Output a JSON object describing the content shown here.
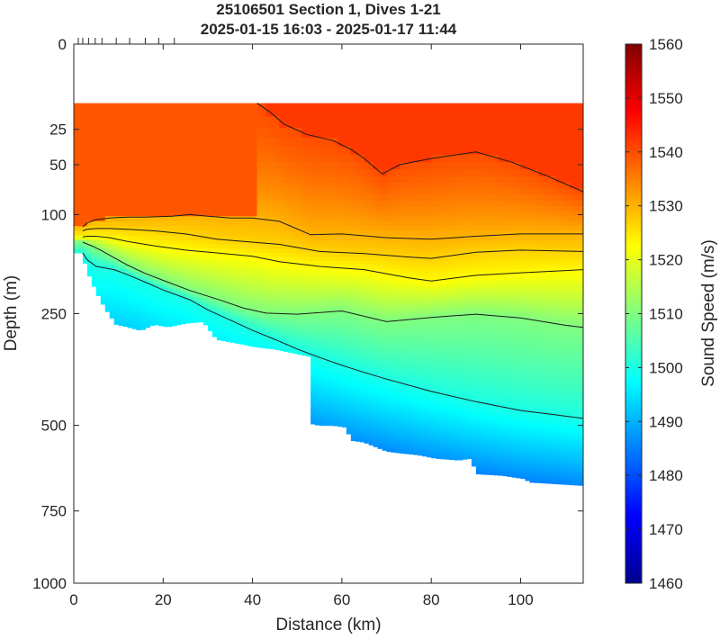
{
  "chart_data": {
    "type": "heatmap",
    "title": "25106501 Section 1, Dives 1-21",
    "subtitle": "2025-01-15 16:03 - 2025-01-17 11:44",
    "xlabel": "Distance (km)",
    "ylabel": "Depth (m)",
    "xlim": [
      0,
      114
    ],
    "ylim": [
      0,
      1000
    ],
    "y_scale": "sqrt",
    "x_ticks": [
      "0",
      "20",
      "40",
      "60",
      "80",
      "100"
    ],
    "x_tick_values": [
      0,
      20,
      40,
      60,
      80,
      100
    ],
    "y_ticks": [
      "0",
      "25",
      "50",
      "100",
      "250",
      "500",
      "750",
      "1000"
    ],
    "y_tick_values": [
      0,
      25,
      50,
      100,
      250,
      500,
      750,
      1000
    ],
    "colorbar": {
      "label": "Sound Speed (m/s)",
      "min": 1460,
      "max": 1560,
      "ticks": [
        "1460",
        "1470",
        "1480",
        "1490",
        "1500",
        "1510",
        "1520",
        "1530",
        "1540",
        "1550",
        "1560"
      ],
      "tick_values": [
        1460,
        1470,
        1480,
        1490,
        1500,
        1510,
        1520,
        1530,
        1540,
        1550,
        1560
      ]
    },
    "dive_marker_distances": [
      1,
      2,
      3.3,
      4.8,
      6.3,
      9.5,
      12.5,
      16,
      19,
      22.5
    ],
    "data_top_depth": 12,
    "bottom_profile": {
      "distance": [
        2,
        3.5,
        5,
        7,
        9.5,
        12,
        15,
        18,
        21,
        25,
        29,
        32,
        35,
        38,
        40.5,
        45,
        50,
        52.5,
        53,
        55,
        58,
        61,
        62,
        65,
        69,
        70,
        73,
        77,
        81,
        86,
        89,
        90,
        96,
        101,
        102,
        108,
        114
      ],
      "depth": [
        155,
        185,
        210,
        240,
        270,
        275,
        282,
        270,
        275,
        268,
        265,
        300,
        305,
        310,
        315,
        320,
        330,
        335,
        495,
        500,
        500,
        505,
        540,
        545,
        565,
        570,
        575,
        580,
        590,
        595,
        590,
        635,
        640,
        650,
        660,
        665,
        670
      ]
    },
    "contours": [
      {
        "distance": [
          41,
          44,
          47,
          52,
          58,
          62,
          65,
          69,
          73,
          80,
          90,
          98,
          106,
          114
        ],
        "depth": [
          12,
          16,
          22,
          28,
          32,
          38,
          45,
          58,
          50,
          45,
          40,
          48,
          60,
          75
        ]
      },
      {
        "distance": [
          2,
          3,
          5,
          8,
          12,
          16,
          22,
          26,
          30,
          35,
          40,
          46,
          53,
          60,
          70,
          80,
          90,
          100,
          114
        ],
        "depth": [
          115,
          110,
          106,
          104,
          103,
          103,
          102,
          100,
          102,
          104,
          104,
          108,
          125,
          124,
          129,
          131,
          127,
          124,
          124
        ]
      },
      {
        "distance": [
          2,
          3,
          5,
          8,
          12,
          18,
          25,
          32,
          38,
          46,
          55,
          65,
          75,
          80,
          90,
          100,
          114
        ],
        "depth": [
          120,
          118,
          117,
          117,
          118,
          120,
          124,
          131,
          134,
          138,
          148,
          151,
          156,
          158,
          149,
          146,
          148
        ]
      },
      {
        "distance": [
          2,
          3,
          5,
          8,
          12,
          18,
          25,
          32,
          40,
          46,
          55,
          65,
          75,
          80,
          90,
          100,
          114
        ],
        "depth": [
          128,
          127,
          127,
          129,
          134,
          140,
          146,
          150,
          155,
          163,
          170,
          175,
          188,
          193,
          184,
          180,
          175
        ]
      },
      {
        "distance": [
          2,
          4,
          6,
          9,
          12,
          16,
          20,
          26,
          33,
          38,
          43,
          50,
          60,
          70,
          80,
          90,
          100,
          110,
          114
        ],
        "depth": [
          135,
          140,
          146,
          157,
          168,
          181,
          192,
          209,
          226,
          240,
          249,
          251,
          245,
          265,
          257,
          251,
          258,
          272,
          276
        ]
      },
      {
        "distance": [
          2,
          3,
          5,
          9,
          12,
          16,
          20,
          26,
          30,
          35,
          40,
          45,
          50,
          55,
          60,
          65,
          70,
          80,
          90,
          100,
          108,
          114
        ],
        "depth": [
          150,
          160,
          170,
          175,
          183,
          195,
          208,
          225,
          243,
          262,
          282,
          300,
          320,
          338,
          355,
          371,
          386,
          415,
          440,
          462,
          473,
          482
        ]
      }
    ]
  }
}
